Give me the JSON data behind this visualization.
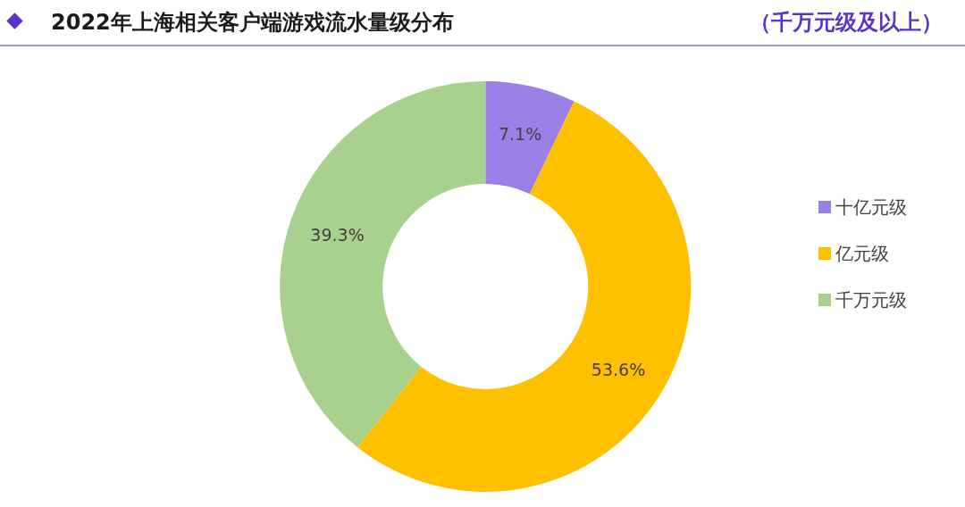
{
  "chart_data": {
    "type": "donut",
    "title": "2022年上海相关客户端游戏流水量级分布",
    "subtitle": "（千万元级及以上）",
    "categories": [
      "十亿元级",
      "亿元级",
      "千万元级"
    ],
    "values": [
      7.1,
      53.6,
      39.3
    ],
    "colors": [
      "#9b80e8",
      "#ffc000",
      "#a9d18e"
    ],
    "value_labels": [
      "7.1%",
      "53.6%",
      "39.3%"
    ],
    "legend": "right"
  }
}
